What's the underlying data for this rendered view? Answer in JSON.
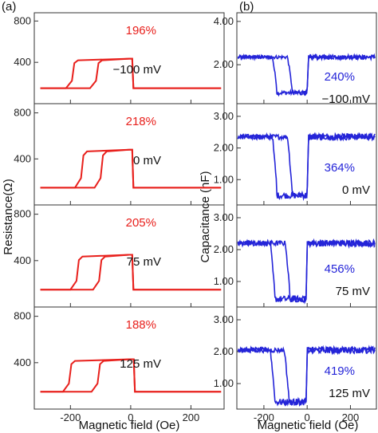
{
  "panel_labels": [
    "(a)",
    "(b)"
  ],
  "colors": {
    "resistance": "#e8201c",
    "capacitance": "#2424d8",
    "axis": "#333333"
  },
  "chart_data": [
    {
      "type": "line",
      "xlabel": "Magnetic field (Oe)",
      "ylabel": "Resistance(Ω)",
      "xlim": [
        -320,
        310
      ],
      "xticks": [
        -200,
        0,
        200
      ],
      "ylim": [
        0,
        880
      ],
      "yticks": [
        400,
        800
      ],
      "panels": [
        {
          "bias": "−100 mV",
          "tmr": "196%",
          "low": 150,
          "high": 435,
          "rise_up": -190,
          "rise_down": -110,
          "drop": 5
        },
        {
          "bias": "0 mV",
          "tmr": "218%",
          "low": 150,
          "high": 480,
          "rise_up": -160,
          "rise_down": -95,
          "drop": 5
        },
        {
          "bias": "75 mV",
          "tmr": "205%",
          "low": 150,
          "high": 450,
          "rise_up": -175,
          "rise_down": -100,
          "drop": 5
        },
        {
          "bias": "125 mV",
          "tmr": "188%",
          "low": 150,
          "high": 430,
          "rise_up": -200,
          "rise_down": -105,
          "drop": 10
        }
      ]
    },
    {
      "type": "line",
      "xlabel": "Magnetic field (Oe)",
      "ylabel": "Capacitance (nF)",
      "xlim": [
        -325,
        320
      ],
      "xticks": [
        -200,
        0,
        200
      ],
      "ylim": [
        0.2,
        3.4
      ],
      "panels": [
        {
          "bias": "−100 mV",
          "tmr": "240%",
          "yticks": [
            2.0,
            4.0
          ],
          "ylim": [
            0.2,
            4.4
          ],
          "baseline": 2.35,
          "dip": 0.7,
          "dip_start": -160,
          "dip_mid": -90,
          "dip_end": 0
        },
        {
          "bias": "0 mV",
          "tmr": "364%",
          "yticks": [
            1.0,
            2.0,
            3.0
          ],
          "ylim": [
            0.2,
            3.4
          ],
          "baseline": 2.35,
          "dip": 0.5,
          "dip_start": -160,
          "dip_mid": -90,
          "dip_end": 0
        },
        {
          "bias": "75 mV",
          "tmr": "456%",
          "yticks": [
            1.0,
            2.0,
            3.0
          ],
          "ylim": [
            0.2,
            3.4
          ],
          "baseline": 2.2,
          "dip": 0.45,
          "dip_start": -170,
          "dip_mid": -100,
          "dip_end": -5
        },
        {
          "bias": "125 mV",
          "tmr": "419%",
          "yticks": [
            1.0,
            2.0,
            3.0
          ],
          "ylim": [
            0.2,
            3.4
          ],
          "baseline": 2.05,
          "dip": 0.42,
          "dip_start": -170,
          "dip_mid": -105,
          "dip_end": -5
        }
      ]
    }
  ]
}
